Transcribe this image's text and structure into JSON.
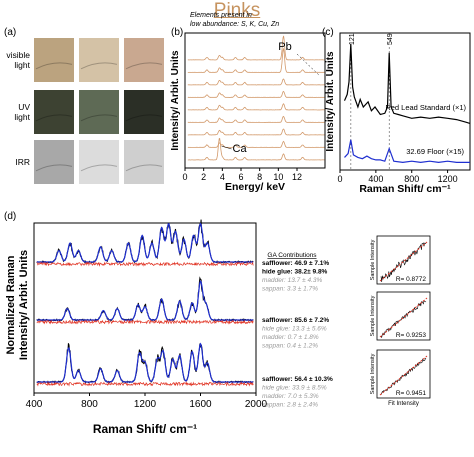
{
  "header": {
    "title": "Pinks"
  },
  "panel_a": {
    "label": "(a)",
    "rows": [
      {
        "label": "visible light",
        "lines": [
          "visible",
          "light"
        ],
        "tiles": [
          "#bba37f",
          "#d4c2a6",
          "#c9a890"
        ]
      },
      {
        "label": "UV light",
        "lines": [
          "UV",
          "light"
        ],
        "tiles": [
          "#3d4232",
          "#5e6a55",
          "#2b2f26"
        ]
      },
      {
        "label": "IRR",
        "lines": [
          "IRR"
        ],
        "tiles": [
          "#a8a8a8",
          "#dcdcdc",
          "#cfcfcf"
        ]
      }
    ]
  },
  "chart_data": [
    {
      "panel": "(b)",
      "type": "line",
      "annotation_lines": [
        "Elements present in",
        "low abundance: S, K, Cu, Zn"
      ],
      "xlabel": "Energy/ keV",
      "ylabel": "Intensity/ Arbit. Units",
      "xlim": [
        0,
        15
      ],
      "xticks": [
        0,
        2,
        4,
        6,
        8,
        10,
        12
      ],
      "peak_labels": [
        {
          "text": "Pb",
          "x": 10.5
        },
        {
          "text": "Ca",
          "x": 3.7
        }
      ],
      "peaks_keV": [
        2.35,
        3.69,
        4.01,
        5.4,
        6.4,
        10.55,
        12.6
      ],
      "series_count": 9,
      "series_color": "#d2996a"
    },
    {
      "panel": "(c)",
      "type": "line",
      "xlabel": "Raman Shift/ cm⁻¹",
      "ylabel": "Intensity/ Arbit. Units",
      "xlim": [
        0,
        1450
      ],
      "xticks": [
        0,
        400,
        800,
        1200
      ],
      "peak_labels": [
        {
          "text": "121",
          "x": 121
        },
        {
          "text": "549",
          "x": 549
        }
      ],
      "series": [
        {
          "name": "Red Lead Standard (×1)",
          "color": "#000000",
          "x": [
            50,
            80,
            100,
            121,
            140,
            160,
            200,
            225,
            260,
            313,
            350,
            390,
            450,
            500,
            530,
            549,
            570,
            600,
            650,
            700,
            800,
            900,
            1000,
            1100,
            1200,
            1300,
            1400,
            1450
          ],
          "y": [
            0.55,
            0.6,
            0.7,
            1.0,
            0.66,
            0.58,
            0.5,
            0.56,
            0.5,
            0.54,
            0.47,
            0.5,
            0.44,
            0.45,
            0.5,
            0.93,
            0.5,
            0.45,
            0.44,
            0.43,
            0.41,
            0.42,
            0.41,
            0.42,
            0.41,
            0.4,
            0.38,
            0.37
          ]
        },
        {
          "name": "32.69 Floor (×15)",
          "color": "#1f2fd0",
          "x": [
            50,
            90,
            121,
            150,
            200,
            250,
            300,
            350,
            400,
            450,
            500,
            549,
            600,
            700,
            800,
            900,
            1000,
            1100,
            1200,
            1300,
            1400,
            1450
          ],
          "y": [
            0.1,
            0.13,
            0.24,
            0.12,
            0.1,
            0.09,
            0.11,
            0.09,
            0.08,
            0.08,
            0.07,
            0.17,
            0.07,
            0.06,
            0.07,
            0.06,
            0.07,
            0.06,
            0.07,
            0.06,
            0.06,
            0.06
          ]
        }
      ]
    },
    {
      "panel": "(d)",
      "type": "line",
      "xlabel": "Raman Shift/ cm⁻¹",
      "ylabel": "Normalized Raman Intensity/ Arbit. Units",
      "xlim": [
        400,
        2000
      ],
      "xticks": [
        400,
        800,
        1200,
        1600,
        2000
      ],
      "contrib_title": "GA Contributions",
      "spectra": [
        {
          "peaks": [
            [
              580,
              0.3
            ],
            [
              660,
              0.5
            ],
            [
              720,
              0.3
            ],
            [
              880,
              0.4
            ],
            [
              960,
              0.3
            ],
            [
              1080,
              0.5
            ],
            [
              1180,
              0.7
            ],
            [
              1250,
              0.5
            ],
            [
              1320,
              0.9
            ],
            [
              1370,
              1.0
            ],
            [
              1420,
              0.8
            ],
            [
              1480,
              0.6
            ],
            [
              1550,
              0.7
            ],
            [
              1600,
              1.0
            ],
            [
              1650,
              0.5
            ]
          ],
          "contributions": [
            {
              "name": "safflower",
              "value": "46.9 ± 7.1%",
              "emphasis": "bold"
            },
            {
              "name": "hide glue",
              "value": "38.2± 9.8%",
              "emphasis": "bold"
            },
            {
              "name": "madder",
              "value": "13.7 ± 4.3%",
              "emphasis": "faint"
            },
            {
              "name": "sappan",
              "value": "3.3 ± 1.7%",
              "emphasis": "faint"
            }
          ]
        },
        {
          "peaks": [
            [
              640,
              0.3
            ],
            [
              900,
              0.25
            ],
            [
              1000,
              0.3
            ],
            [
              1150,
              0.4
            ],
            [
              1200,
              0.35
            ],
            [
              1320,
              0.55
            ],
            [
              1450,
              0.5
            ],
            [
              1540,
              0.45
            ],
            [
              1600,
              1.0
            ],
            [
              1640,
              0.4
            ]
          ],
          "contributions": [
            {
              "name": "safflower",
              "value": "85.6 ± 7.2%",
              "emphasis": "bold"
            },
            {
              "name": "hide glue",
              "value": "13.3 ± 5.6%",
              "emphasis": "faint"
            },
            {
              "name": "madder",
              "value": "0.7 ± 1.8%",
              "emphasis": "faint"
            },
            {
              "name": "sappan",
              "value": "0.4 ± 1.2%",
              "emphasis": "faint"
            }
          ]
        },
        {
          "peaks": [
            [
              650,
              0.9
            ],
            [
              720,
              0.3
            ],
            [
              880,
              0.35
            ],
            [
              1000,
              0.3
            ],
            [
              1160,
              0.75
            ],
            [
              1200,
              0.5
            ],
            [
              1290,
              0.6
            ],
            [
              1330,
              0.8
            ],
            [
              1400,
              0.6
            ],
            [
              1450,
              0.7
            ],
            [
              1540,
              0.8
            ],
            [
              1600,
              1.0
            ],
            [
              1650,
              0.5
            ]
          ],
          "contributions": [
            {
              "name": "safflower",
              "value": "56.4 ± 10.3%",
              "emphasis": "bold"
            },
            {
              "name": "hide glue",
              "value": "33.9 ± 8.5%",
              "emphasis": "faint"
            },
            {
              "name": "madder",
              "value": "7.0 ± 5.3%",
              "emphasis": "faint"
            },
            {
              "name": "sappan",
              "value": "2.8 ± 2.4%",
              "emphasis": "faint"
            }
          ]
        }
      ],
      "colors": {
        "measured": "#000000",
        "fit": "#1f2fd0",
        "residual": "#e03020"
      }
    },
    {
      "panel": "(d) correlation",
      "type": "scatter",
      "xlabel": "Fit Intensity",
      "ylabel": "Sample Intensity",
      "plots": [
        {
          "r_label": "R= 0.8772",
          "r": 0.8772
        },
        {
          "r_label": "R= 0.9253",
          "r": 0.9253
        },
        {
          "r_label": "R= 0.9451",
          "r": 0.9451
        }
      ]
    }
  ],
  "colors": {
    "title": "#c6935f",
    "xrf": "#d2996a",
    "fit": "#1f2fd0",
    "residual": "#e03020"
  }
}
